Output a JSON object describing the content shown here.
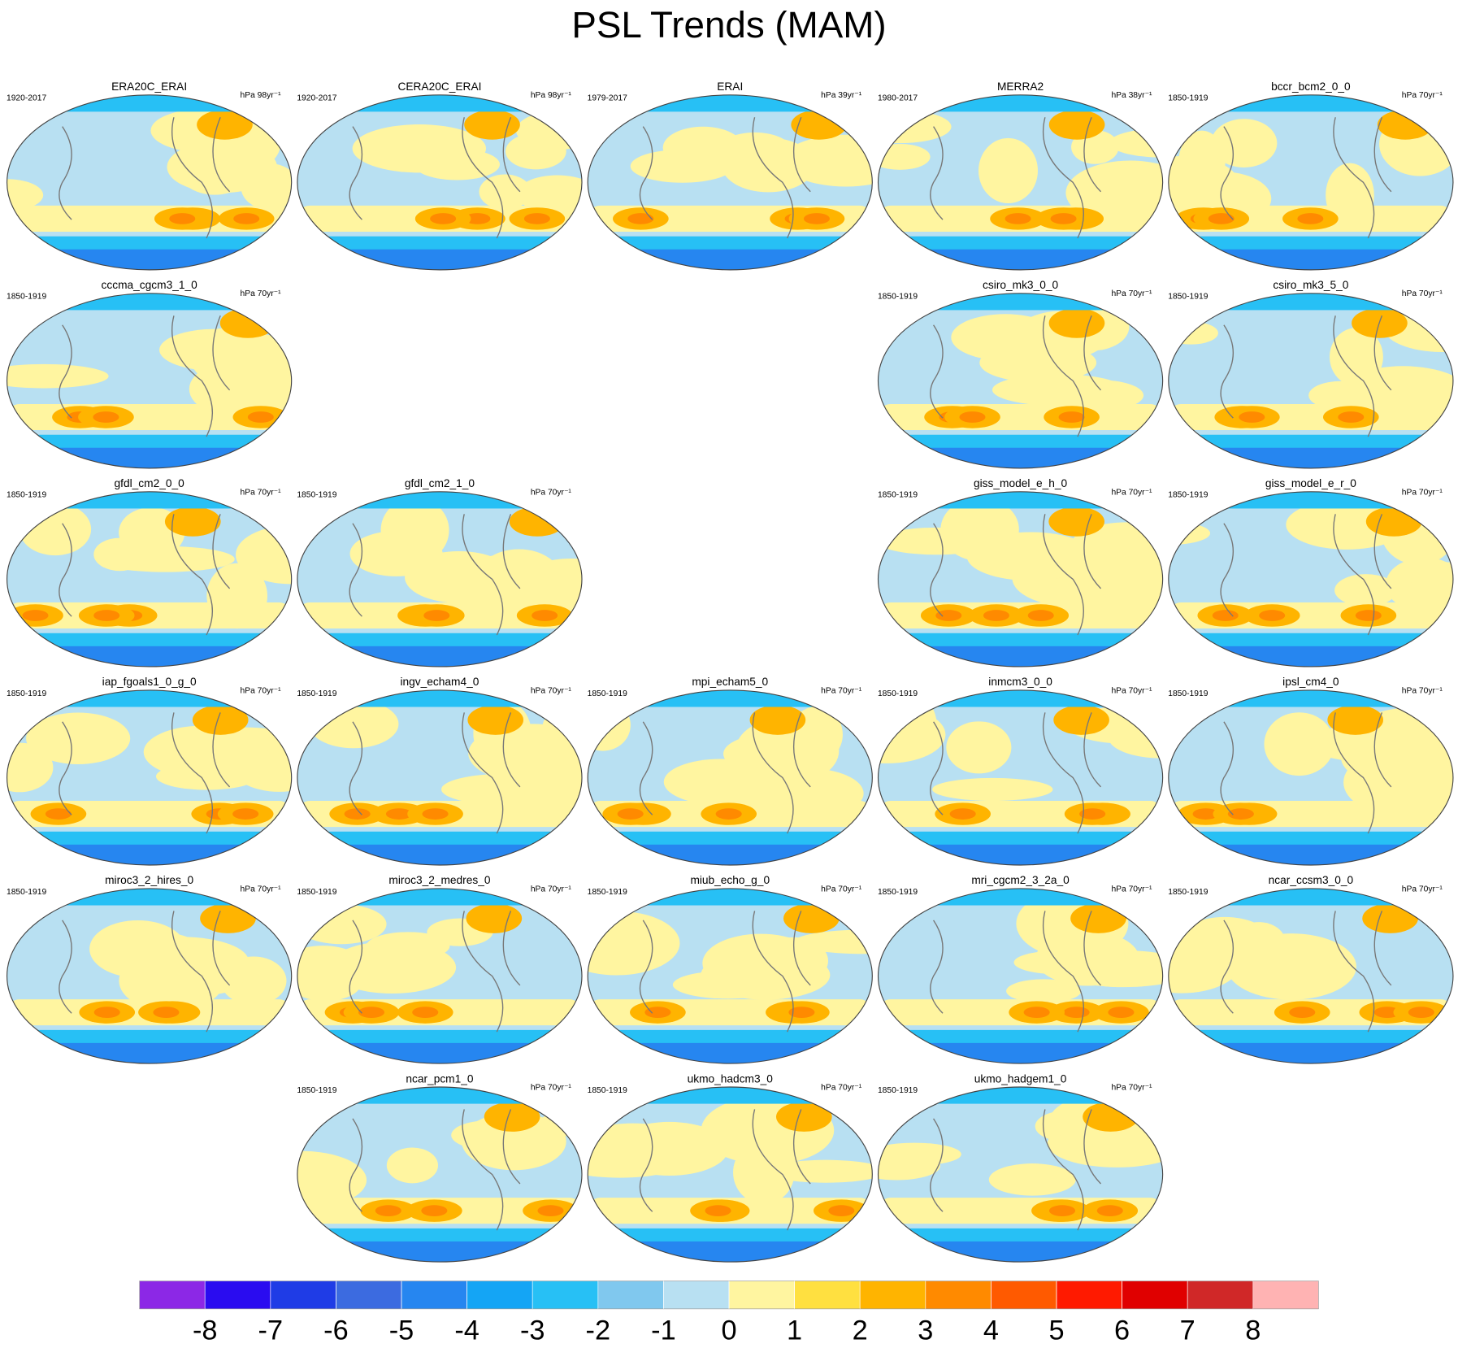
{
  "title": "PSL Trends (MAM)",
  "rows": [
    [
      {
        "name": "ERA20C_ERAI",
        "period": "1920-2017",
        "units": "hPa 98yr⁻¹"
      },
      {
        "name": "CERA20C_ERAI",
        "period": "1920-2017",
        "units": "hPa 98yr⁻¹"
      },
      {
        "name": "ERAI",
        "period": "1979-2017",
        "units": "hPa 39yr⁻¹"
      },
      {
        "name": "MERRA2",
        "period": "1980-2017",
        "units": "hPa 38yr⁻¹"
      },
      {
        "name": "bccr_bcm2_0_0",
        "period": "1850-1919",
        "units": "hPa 70yr⁻¹"
      }
    ],
    [
      {
        "name": "cccma_cgcm3_1_0",
        "period": "1850-1919",
        "units": "hPa 70yr⁻¹"
      },
      null,
      null,
      {
        "name": "csiro_mk3_0_0",
        "period": "1850-1919",
        "units": "hPa 70yr⁻¹"
      },
      {
        "name": "csiro_mk3_5_0",
        "period": "1850-1919",
        "units": "hPa 70yr⁻¹"
      }
    ],
    [
      {
        "name": "gfdl_cm2_0_0",
        "period": "1850-1919",
        "units": "hPa 70yr⁻¹"
      },
      {
        "name": "gfdl_cm2_1_0",
        "period": "1850-1919",
        "units": "hPa 70yr⁻¹"
      },
      null,
      {
        "name": "giss_model_e_h_0",
        "period": "1850-1919",
        "units": "hPa 70yr⁻¹"
      },
      {
        "name": "giss_model_e_r_0",
        "period": "1850-1919",
        "units": "hPa 70yr⁻¹"
      }
    ],
    [
      {
        "name": "iap_fgoals1_0_g_0",
        "period": "1850-1919",
        "units": "hPa 70yr⁻¹"
      },
      {
        "name": "ingv_echam4_0",
        "period": "1850-1919",
        "units": "hPa 70yr⁻¹"
      },
      {
        "name": "mpi_echam5_0",
        "period": "1850-1919",
        "units": "hPa 70yr⁻¹"
      },
      {
        "name": "inmcm3_0_0",
        "period": "1850-1919",
        "units": "hPa 70yr⁻¹"
      },
      {
        "name": "ipsl_cm4_0",
        "period": "1850-1919",
        "units": "hPa 70yr⁻¹"
      }
    ],
    [
      {
        "name": "miroc3_2_hires_0",
        "period": "1850-1919",
        "units": "hPa 70yr⁻¹"
      },
      {
        "name": "miroc3_2_medres_0",
        "period": "1850-1919",
        "units": "hPa 70yr⁻¹"
      },
      {
        "name": "miub_echo_g_0",
        "period": "1850-1919",
        "units": "hPa 70yr⁻¹"
      },
      {
        "name": "mri_cgcm2_3_2a_0",
        "period": "1850-1919",
        "units": "hPa 70yr⁻¹"
      },
      {
        "name": "ncar_ccsm3_0_0",
        "period": "1850-1919",
        "units": "hPa 70yr⁻¹"
      }
    ],
    [
      null,
      {
        "name": "ncar_pcm1_0",
        "period": "1850-1919",
        "units": "hPa 70yr⁻¹"
      },
      {
        "name": "ukmo_hadcm3_0",
        "period": "1850-1919",
        "units": "hPa 70yr⁻¹"
      },
      {
        "name": "ukmo_hadgem1_0",
        "period": "1850-1919",
        "units": "hPa 70yr⁻¹"
      },
      null
    ]
  ],
  "colorbar": {
    "colors": [
      "#8c28e6",
      "#2a0cf0",
      "#1f3ce6",
      "#3c6be0",
      "#2686f0",
      "#14a5f5",
      "#27c0f5",
      "#80c8ee",
      "#b8e0f2",
      "#fff5a0",
      "#ffe040",
      "#ffb400",
      "#ff8a00",
      "#ff5a00",
      "#ff1a00",
      "#e00000",
      "#d02828",
      "#ffb3b3"
    ],
    "ticks": [
      -8,
      -7,
      -6,
      -5,
      -4,
      -3,
      -2,
      -1,
      0,
      1,
      2,
      3,
      4,
      5,
      6,
      7,
      8
    ]
  }
}
